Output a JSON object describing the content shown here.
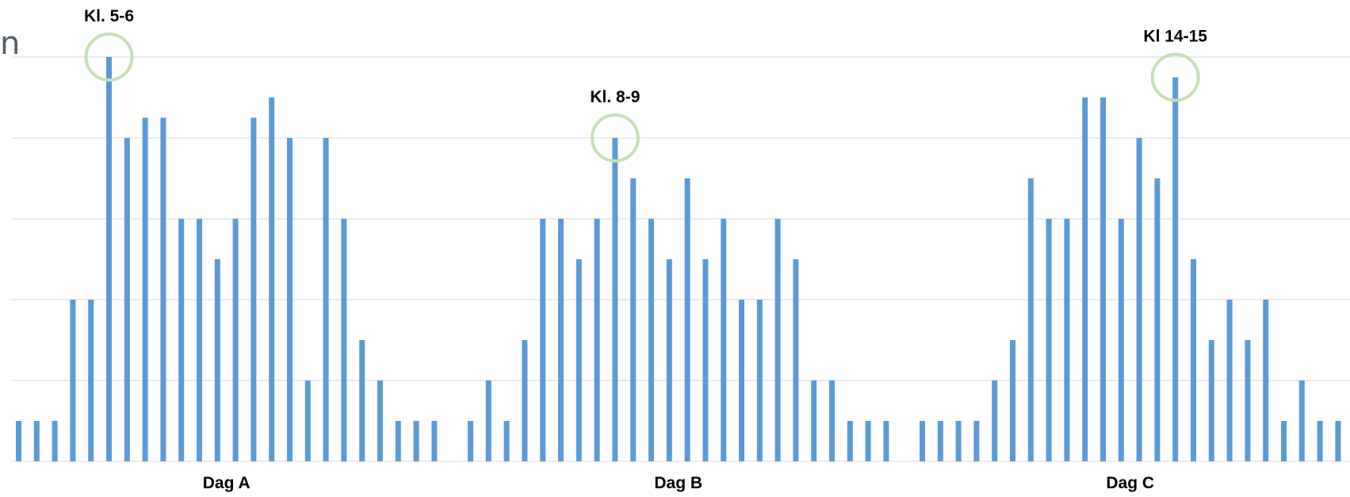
{
  "stray_text": "n",
  "chart_data": {
    "type": "bar",
    "title": "",
    "xlabel": "",
    "ylabel": "",
    "ylim": [
      0,
      10
    ],
    "grid": true,
    "bar_color": "#5b9bd5",
    "highlight_color": "#c5e0b4",
    "grid_color": "#d9d9d9",
    "groups": [
      {
        "label": "Dag A",
        "values": [
          1,
          1,
          1,
          4,
          4,
          10,
          8,
          8.5,
          8.5,
          6,
          6,
          5,
          6,
          8.5,
          9,
          8,
          2,
          8,
          6,
          3,
          2,
          1,
          1,
          1
        ]
      },
      {
        "label": "Dag B",
        "values": [
          1,
          2,
          1,
          3,
          6,
          6,
          5,
          6,
          8,
          7,
          6,
          5,
          7,
          5,
          6,
          4,
          4,
          6,
          5,
          2,
          2,
          1,
          1,
          1
        ]
      },
      {
        "label": "Dag C",
        "values": [
          1,
          1,
          1,
          1,
          2,
          3,
          7,
          6,
          6,
          9,
          9,
          6,
          8,
          7,
          9.5,
          5,
          3,
          4,
          3,
          4,
          1,
          2,
          1,
          1
        ]
      }
    ],
    "annotations": [
      {
        "label": "Kl. 5-6",
        "group": 0,
        "index": 5
      },
      {
        "label": "Kl. 8-9",
        "group": 1,
        "index": 8
      },
      {
        "label": "Kl 14-15",
        "group": 2,
        "index": 14
      }
    ]
  }
}
